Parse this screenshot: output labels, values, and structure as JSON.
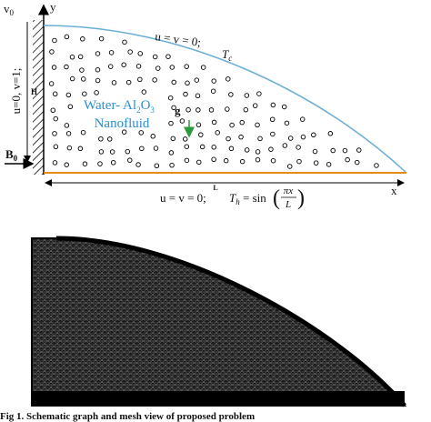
{
  "schematic": {
    "axis_y": "y",
    "axis_x": "x",
    "v0": {
      "base": "v",
      "sub": "0"
    },
    "top_bc": "u = v = 0;",
    "tc": {
      "base": "T",
      "sub": "c"
    },
    "fluid": {
      "line1_a": "Water- Al",
      "line1_sub1": "2",
      "line1_b": "O",
      "line1_sub2": "3",
      "line2": "Nanofluid"
    },
    "gravity": "g",
    "height": "H",
    "left_bc": "u=0, v=1;",
    "b0": {
      "base": "B",
      "sub": "0"
    },
    "length": "L",
    "bottom_bc": "u = v = 0;",
    "th": {
      "base": "T",
      "sub": "h",
      "eq": " = sin"
    },
    "paren_open": "(",
    "paren_close": ")",
    "frac_num": "πx",
    "frac_den": "L"
  },
  "caption": "Fig 1. Schematic graph and mesh view of proposed problem"
}
